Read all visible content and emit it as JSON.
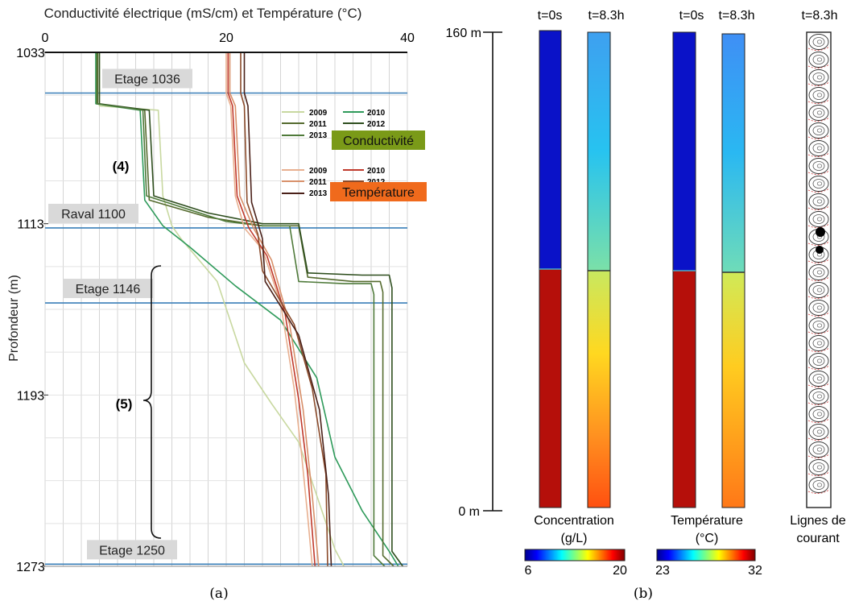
{
  "panel_a": {
    "caption": "(a)",
    "title": "Conductivité électrique (mS/cm) et Température (°C)",
    "ylabel": "Profondeur (m)",
    "legend_conductivity": {
      "label": "Conductivité",
      "color": "#7a9a18",
      "years": [
        "2009",
        "2010",
        "2011",
        "2012",
        "2013"
      ]
    },
    "legend_temperature": {
      "label": "Température",
      "color": "#f06a1c",
      "years": [
        "2009",
        "2010",
        "2011",
        "2012",
        "2013"
      ]
    },
    "annotations": {
      "zone4": "(4)",
      "zone5": "(5)"
    }
  },
  "panel_b": {
    "caption": "(b)",
    "depth_top": "160 m",
    "depth_bottom": "0 m",
    "time_labels": [
      "t=0s",
      "t=8.3h",
      "t=0s",
      "t=8.3h",
      "t=8.3h"
    ],
    "concentration": {
      "label_line1": "Concentration",
      "label_line2": "(g/L)",
      "cb_min": "6",
      "cb_max": "20"
    },
    "temperature": {
      "label_line1": "Température",
      "label_line2": "(°C)",
      "cb_min": "23",
      "cb_max": "32"
    },
    "streamlines": {
      "label_line1": "Lignes de",
      "label_line2": "courant"
    }
  },
  "chart_data": [
    {
      "type": "line",
      "title": "Conductivité électrique (mS/cm) et Température (°C)",
      "xlabel": "Conductivité électrique (mS/cm) et Température (°C)",
      "ylabel": "Profondeur (m)",
      "xlim": [
        0,
        40
      ],
      "ylim": [
        1273,
        1033
      ],
      "x_ticks": [
        "0",
        "20",
        "40"
      ],
      "y_ticks": [
        "1033",
        "1113",
        "1193",
        "1273"
      ],
      "grid": true,
      "legend_position": "upper-right",
      "levels": [
        {
          "label": "Etage 1036",
          "depth": 1052
        },
        {
          "label": "Raval 1100",
          "depth": 1115
        },
        {
          "label": "Etage 1146",
          "depth": 1150
        },
        {
          "label": "Etage 1250",
          "depth": 1272
        }
      ],
      "series": [
        {
          "name": "2009",
          "group": "Conductivité",
          "color": "#c8d8a0",
          "points": [
            [
              6,
              1033
            ],
            [
              6,
              1058
            ],
            [
              12.5,
              1060
            ],
            [
              13,
              1100
            ],
            [
              14,
              1114
            ],
            [
              15,
              1120
            ],
            [
              19,
              1140
            ],
            [
              22,
              1178
            ],
            [
              25,
              1197
            ],
            [
              28,
              1215
            ],
            [
              30,
              1240
            ],
            [
              32,
              1265
            ],
            [
              33,
              1273
            ]
          ]
        },
        {
          "name": "2010",
          "group": "Conductivité",
          "color": "#2e9a5a",
          "points": [
            [
              5.6,
              1033
            ],
            [
              5.6,
              1057
            ],
            [
              10.5,
              1060
            ],
            [
              11,
              1102
            ],
            [
              13,
              1114
            ],
            [
              16,
              1124
            ],
            [
              21,
              1142
            ],
            [
              26,
              1158
            ],
            [
              30,
              1185
            ],
            [
              32,
              1222
            ],
            [
              35,
              1247
            ],
            [
              38,
              1266
            ],
            [
              39,
              1273
            ]
          ]
        },
        {
          "name": "2011",
          "group": "Conductivité",
          "color": "#556b2f",
          "points": [
            [
              5.8,
              1033
            ],
            [
              5.8,
              1057
            ],
            [
              11,
              1060
            ],
            [
              11.5,
              1102
            ],
            [
              18,
              1110
            ],
            [
              24,
              1114
            ],
            [
              28,
              1114
            ],
            [
              29,
              1138
            ],
            [
              34,
              1140
            ],
            [
              37,
              1140
            ],
            [
              37.3,
              1145
            ],
            [
              37.3,
              1268
            ],
            [
              38.5,
              1273
            ]
          ]
        },
        {
          "name": "2012",
          "group": "Conductivité",
          "color": "#2f4f1f",
          "points": [
            [
              6,
              1033
            ],
            [
              6,
              1057
            ],
            [
              11.5,
              1060
            ],
            [
              12,
              1100
            ],
            [
              18,
              1108
            ],
            [
              24,
              1113
            ],
            [
              28,
              1113
            ],
            [
              29,
              1136
            ],
            [
              35,
              1137
            ],
            [
              38,
              1137
            ],
            [
              38.3,
              1143
            ],
            [
              38.3,
              1266
            ],
            [
              39.5,
              1273
            ]
          ]
        },
        {
          "name": "2013",
          "group": "Conductivité",
          "color": "#4f7a3a",
          "points": [
            [
              5.7,
              1033
            ],
            [
              5.7,
              1057
            ],
            [
              10.8,
              1060
            ],
            [
              11.2,
              1100
            ],
            [
              20,
              1112
            ],
            [
              24,
              1114
            ],
            [
              27,
              1114
            ],
            [
              28,
              1140
            ],
            [
              33,
              1141
            ],
            [
              36,
              1141
            ],
            [
              36.3,
              1146
            ],
            [
              36.3,
              1268
            ],
            [
              37.5,
              1273
            ]
          ]
        },
        {
          "name": "2009",
          "group": "Température",
          "color": "#e8b090",
          "points": [
            [
              20,
              1033
            ],
            [
              20,
              1052
            ],
            [
              20.5,
              1058
            ],
            [
              21,
              1100
            ],
            [
              22,
              1115
            ],
            [
              24,
              1125
            ],
            [
              26,
              1150
            ],
            [
              27.5,
              1190
            ],
            [
              28.3,
              1220
            ],
            [
              29,
              1250
            ],
            [
              29.5,
              1273
            ]
          ]
        },
        {
          "name": "2010",
          "group": "Température",
          "color": "#c0392b",
          "points": [
            [
              20.2,
              1033
            ],
            [
              20.2,
              1052
            ],
            [
              20.7,
              1058
            ],
            [
              21.2,
              1100
            ],
            [
              22.5,
              1115
            ],
            [
              24.5,
              1128
            ],
            [
              26.5,
              1155
            ],
            [
              28,
              1195
            ],
            [
              29,
              1230
            ],
            [
              29.8,
              1273
            ]
          ]
        },
        {
          "name": "2011",
          "group": "Température",
          "color": "#d8906a",
          "points": [
            [
              20.4,
              1033
            ],
            [
              20.4,
              1052
            ],
            [
              21,
              1058
            ],
            [
              21.5,
              1100
            ],
            [
              23,
              1115
            ],
            [
              25,
              1130
            ],
            [
              27,
              1160
            ],
            [
              28.5,
              1200
            ],
            [
              29.5,
              1240
            ],
            [
              30.2,
              1273
            ]
          ]
        },
        {
          "name": "2012",
          "group": "Température",
          "color": "#8a4a2a",
          "points": [
            [
              21.6,
              1033
            ],
            [
              21.6,
              1052
            ],
            [
              22,
              1058
            ],
            [
              22.3,
              1103
            ],
            [
              23.5,
              1118
            ],
            [
              24,
              1135
            ],
            [
              27.5,
              1160
            ],
            [
              29.5,
              1190
            ],
            [
              31,
              1230
            ],
            [
              31.2,
              1273
            ]
          ]
        },
        {
          "name": "2013",
          "group": "Température",
          "color": "#4a2018",
          "points": [
            [
              22,
              1033
            ],
            [
              22,
              1052
            ],
            [
              22.4,
              1058
            ],
            [
              22.8,
              1103
            ],
            [
              24,
              1120
            ],
            [
              24.3,
              1140
            ],
            [
              28,
              1165
            ],
            [
              30.3,
              1200
            ],
            [
              31.3,
              1240
            ],
            [
              31.6,
              1273
            ]
          ]
        }
      ]
    },
    {
      "type": "heatmap",
      "title": "",
      "columns": [
        {
          "label": "Concentration",
          "time": "t=0s",
          "top_value": 6,
          "bottom_value": 20,
          "interface_fraction": 0.5
        },
        {
          "label": "Concentration",
          "time": "t=8.3h",
          "top_value": 7,
          "bottom_value": 19,
          "interface_fraction": 0.5
        },
        {
          "label": "Température",
          "time": "t=0s",
          "top_value": 23,
          "bottom_value": 32,
          "interface_fraction": 0.5
        },
        {
          "label": "Température",
          "time": "t=8.3h",
          "top_value": 23.8,
          "bottom_value": 30.5,
          "interface_fraction": 0.5
        }
      ],
      "ylim": [
        0,
        160
      ],
      "y_ticks": [
        "0 m",
        "160 m"
      ],
      "colorbars": [
        {
          "label": "Concentration (g/L)",
          "min": 6,
          "max": 20
        },
        {
          "label": "Température (°C)",
          "min": 23,
          "max": 32
        }
      ]
    }
  ]
}
